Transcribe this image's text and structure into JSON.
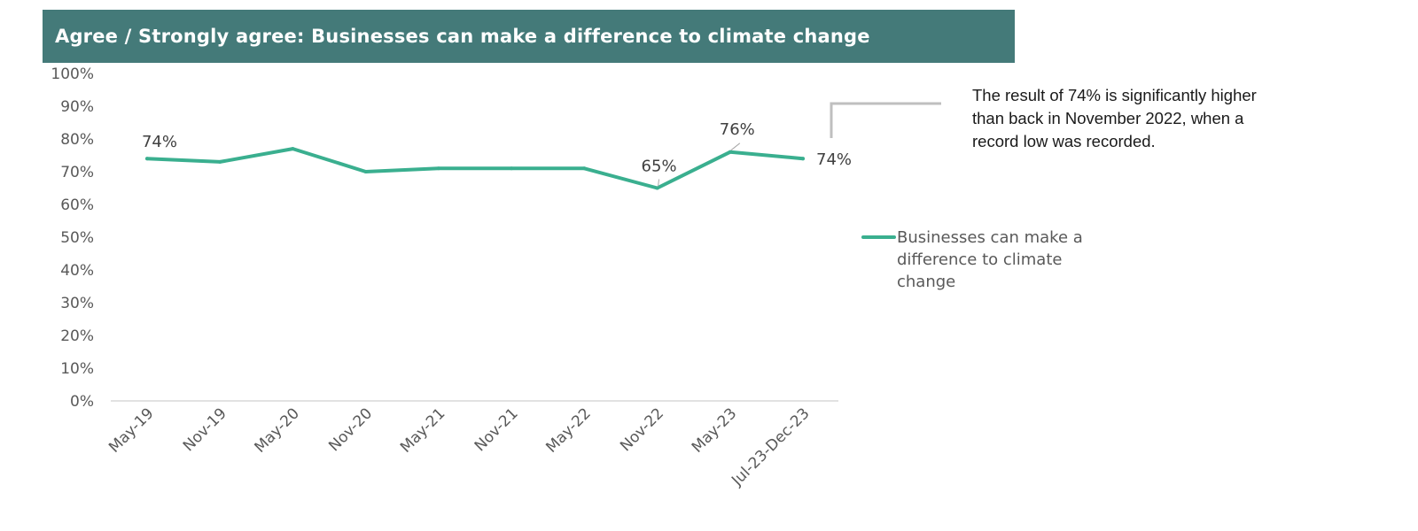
{
  "title": "Agree / Strongly agree: Businesses can make a difference to climate change",
  "annotation": "The result of 74% is significantly higher than back in November 2022, when a record low was recorded.",
  "colors": {
    "title_bg": "#447a79",
    "series": "#3aaf8f",
    "axis": "#d9d9d9",
    "bracket": "#bfbfbf",
    "text": "#595959"
  },
  "chart_data": {
    "type": "line",
    "title": "Agree / Strongly agree: Businesses can make a difference to climate change",
    "xlabel": "",
    "ylabel": "",
    "categories": [
      "May-19",
      "Nov-19",
      "May-20",
      "Nov-20",
      "May-21",
      "Nov-21",
      "May-22",
      "Nov-22",
      "May-23",
      "Jul-23-Dec-23"
    ],
    "series": [
      {
        "name": "Businesses can make a difference to climate change",
        "values": [
          74,
          73,
          77,
          70,
          71,
          71,
          71,
          65,
          76,
          74
        ]
      }
    ],
    "data_labels": [
      {
        "index": 0,
        "text": "74%"
      },
      {
        "index": 7,
        "text": "65%"
      },
      {
        "index": 8,
        "text": "76%"
      },
      {
        "index": 9,
        "text": "74%"
      }
    ],
    "ylim": [
      0,
      100
    ],
    "yticks": [
      "0%",
      "10%",
      "20%",
      "30%",
      "40%",
      "50%",
      "60%",
      "70%",
      "80%",
      "90%",
      "100%"
    ],
    "grid": false,
    "legend_position": "right"
  }
}
